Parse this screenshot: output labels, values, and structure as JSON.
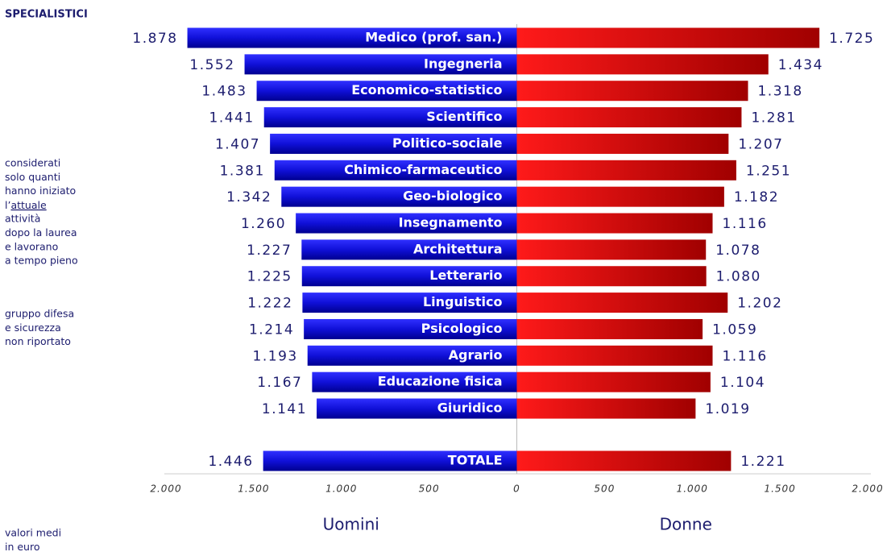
{
  "chart_data": {
    "type": "butterfly",
    "title": "SPECIALISTICI",
    "categories": [
      "Medico (prof. san.)",
      "Ingegneria",
      "Economico-statistico",
      "Scientifico",
      "Politico-sociale",
      "Chimico-farmaceutico",
      "Geo-biologico",
      "Insegnamento",
      "Architettura",
      "Letterario",
      "Linguistico",
      "Psicologico",
      "Agrario",
      "Educazione fisica",
      "Giuridico",
      "TOTALE"
    ],
    "series": [
      {
        "name": "Uomini",
        "color": "#1010d0",
        "values": [
          1878,
          1552,
          1483,
          1441,
          1407,
          1381,
          1342,
          1260,
          1227,
          1225,
          1222,
          1214,
          1193,
          1167,
          1141,
          1446
        ],
        "value_labels": [
          "1.878",
          "1.552",
          "1.483",
          "1.441",
          "1.407",
          "1.381",
          "1.342",
          "1.260",
          "1.227",
          "1.225",
          "1.222",
          "1.214",
          "1.193",
          "1.167",
          "1.141",
          "1.446"
        ]
      },
      {
        "name": "Donne",
        "color": "#e01010",
        "values": [
          1725,
          1434,
          1318,
          1281,
          1207,
          1251,
          1182,
          1116,
          1078,
          1080,
          1202,
          1059,
          1116,
          1104,
          1019,
          1221
        ],
        "value_labels": [
          "1.725",
          "1.434",
          "1.318",
          "1.281",
          "1.207",
          "1.251",
          "1.182",
          "1.116",
          "1.078",
          "1.080",
          "1.202",
          "1.059",
          "1.116",
          "1.104",
          "1.019",
          "1.221"
        ]
      }
    ],
    "xlim": [
      -2000,
      2000
    ],
    "xticks": [
      {
        "value": -2000,
        "label": "2.000"
      },
      {
        "value": -1500,
        "label": "1.500"
      },
      {
        "value": -1000,
        "label": "1.000"
      },
      {
        "value": -500,
        "label": "500"
      },
      0,
      {
        "value": 500,
        "label": "500"
      },
      {
        "value": 1000,
        "label": "1.000"
      },
      {
        "value": 1500,
        "label": "1.500"
      },
      {
        "value": 2000,
        "label": "2.000"
      }
    ],
    "grid": false,
    "annotations": [
      {
        "lines": [
          "considerati",
          "solo quanti",
          "hanno iniziato",
          [
            "l’",
            "attuale"
          ],
          "attività",
          "dopo la laurea",
          "e lavorano",
          "a tempo pieno"
        ]
      },
      {
        "lines": [
          "gruppo difesa",
          "e sicurezza",
          "non riportato"
        ]
      },
      {
        "lines": [
          "valori medi",
          "in euro"
        ]
      }
    ]
  }
}
